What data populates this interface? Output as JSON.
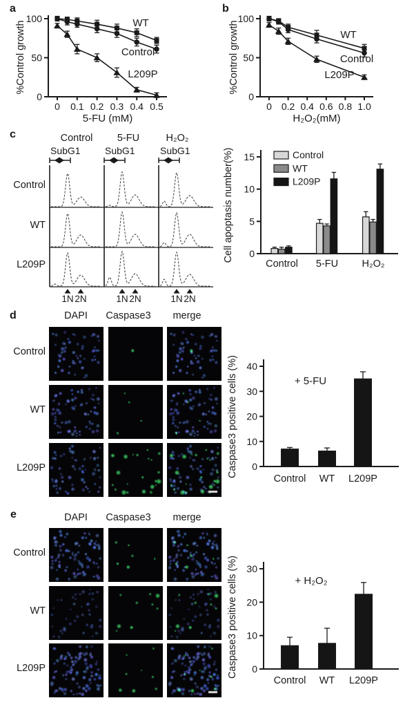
{
  "figure": {
    "panels": {
      "a": {
        "label": "a"
      },
      "b": {
        "label": "b"
      },
      "c": {
        "label": "c",
        "col_headers": [
          "Control",
          "5-FU",
          "H₂O₂"
        ],
        "subg1_label": "SubG1",
        "row_labels": [
          "Control",
          "WT",
          "L209P"
        ],
        "peak_markers": [
          "1N",
          "2N"
        ],
        "histograms": [
          [
            {
              "sub": 0,
              "main": 48,
              "g2": 14
            },
            {
              "sub": 2,
              "main": 50,
              "g2": 17
            },
            {
              "sub": 8,
              "main": 49,
              "g2": 16
            }
          ],
          [
            {
              "sub": 0,
              "main": 48,
              "g2": 17
            },
            {
              "sub": 0,
              "main": 50,
              "g2": 18
            },
            {
              "sub": 6,
              "main": 49,
              "g2": 18
            }
          ],
          [
            {
              "sub": 3,
              "main": 48,
              "g2": 16
            },
            {
              "sub": 13,
              "main": 50,
              "g2": 18
            },
            {
              "sub": 10,
              "main": 49,
              "g2": 17
            }
          ]
        ]
      },
      "d": {
        "label": "d",
        "col_headers": [
          "DAPI",
          "Caspase3",
          "merge"
        ],
        "row_labels": [
          "Control",
          "WT",
          "L209P"
        ],
        "micrographs": [
          {
            "dapi": 55,
            "caspase": 1
          },
          {
            "dapi": 70,
            "caspase": 5
          },
          {
            "dapi": 62,
            "caspase": 22
          }
        ]
      },
      "e": {
        "label": "e",
        "col_headers": [
          "DAPI",
          "Caspase3",
          "merge"
        ],
        "row_labels": [
          "Control",
          "WT",
          "L209P"
        ],
        "micrographs": [
          {
            "dapi": 88,
            "caspase": 6
          },
          {
            "dapi": 42,
            "caspase": 9,
            "dim": true
          },
          {
            "dapi": 95,
            "caspase": 8
          }
        ]
      }
    },
    "colors": {
      "ink": "#1a1a1a",
      "dapi_blue": "#4053d6",
      "caspase_green": "#3fce62",
      "bar_light": "#d8d8d8",
      "bar_mid": "#8a8a8a",
      "bar_dark": "#151515"
    }
  },
  "chart_data": [
    {
      "id": "a",
      "type": "line",
      "xlabel": "5-FU (mM)",
      "ylabel": "%Control growth",
      "xlim": [
        0,
        0.5
      ],
      "ylim": [
        0,
        100
      ],
      "xticks": [
        "0",
        "0.1",
        "0.2",
        "0.3",
        "0.4",
        "0.5"
      ],
      "yticks": [
        0,
        50,
        100
      ],
      "x": [
        0,
        0.05,
        0.1,
        0.2,
        0.3,
        0.4,
        0.5
      ],
      "series": [
        {
          "name": "WT",
          "marker": "square",
          "values": [
            100,
            99,
            97,
            93,
            88,
            82,
            72
          ],
          "errors": [
            3,
            3,
            4,
            5,
            5,
            5,
            4
          ]
        },
        {
          "name": "Control",
          "marker": "circle",
          "values": [
            100,
            96,
            93,
            87,
            81,
            70,
            61
          ],
          "errors": [
            3,
            4,
            4,
            5,
            5,
            5,
            5
          ]
        },
        {
          "name": "L209P",
          "marker": "triangle",
          "values": [
            91,
            80,
            61,
            50,
            31,
            9,
            2
          ],
          "errors": [
            3,
            4,
            6,
            5,
            6,
            3,
            3
          ]
        }
      ]
    },
    {
      "id": "b",
      "type": "line",
      "xlabel": "H₂O₂(mM)",
      "ylabel": "%Control growth",
      "xlim": [
        0,
        1.0
      ],
      "ylim": [
        0,
        100
      ],
      "xticks": [
        "0",
        "0.2",
        "0.4",
        "0.6",
        "0.8",
        "1.0"
      ],
      "yticks": [
        0,
        50,
        100
      ],
      "x": [
        0,
        0.1,
        0.2,
        0.5,
        1.0
      ],
      "series": [
        {
          "name": "WT",
          "marker": "square",
          "values": [
            100,
            97,
            89,
            79,
            62
          ],
          "errors": [
            3,
            3,
            4,
            6,
            5
          ]
        },
        {
          "name": "Control",
          "marker": "circle",
          "values": [
            100,
            96,
            86,
            74,
            56
          ],
          "errors": [
            3,
            3,
            4,
            5,
            5
          ]
        },
        {
          "name": "L209P",
          "marker": "triangle",
          "values": [
            92,
            84,
            71,
            48,
            25
          ],
          "errors": [
            3,
            4,
            4,
            4,
            3
          ]
        }
      ]
    },
    {
      "id": "c_bars",
      "type": "bar",
      "ylabel": "Cell apoptasis number(%)",
      "ylim": [
        0,
        15
      ],
      "yticks": [
        0,
        5,
        10,
        15
      ],
      "categories": [
        "Control",
        "5-FU",
        "H₂O₂"
      ],
      "legend_position": "top-left",
      "series": [
        {
          "name": "Control",
          "values": [
            0.8,
            4.7,
            5.7
          ],
          "errors": [
            0.2,
            0.6,
            0.8
          ]
        },
        {
          "name": "WT",
          "values": [
            0.7,
            4.3,
            4.9
          ],
          "errors": [
            0.3,
            0.3,
            0.4
          ]
        },
        {
          "name": "L209P",
          "values": [
            1.0,
            11.6,
            13.1
          ],
          "errors": [
            0.2,
            1.0,
            0.8
          ]
        }
      ]
    },
    {
      "id": "d_bars",
      "type": "bar",
      "ylabel": "Caspase3 positive cells (%)",
      "annotation": "+ 5-FU",
      "ylim": [
        0,
        40
      ],
      "yticks": [
        0,
        10,
        20,
        30,
        40
      ],
      "categories": [
        "Control",
        "WT",
        "L209P"
      ],
      "values": [
        7,
        6.2,
        35
      ],
      "errors": [
        0.6,
        1.2,
        2.8
      ]
    },
    {
      "id": "e_bars",
      "type": "bar",
      "ylabel": "Caspase3 positive cells (%)",
      "annotation": "+ H₂O₂",
      "ylim": [
        0,
        30
      ],
      "yticks": [
        0,
        10,
        20,
        30
      ],
      "categories": [
        "Control",
        "WT",
        "L209P"
      ],
      "values": [
        7,
        7.7,
        22.4
      ],
      "errors": [
        2.5,
        4.5,
        3.5
      ]
    }
  ]
}
